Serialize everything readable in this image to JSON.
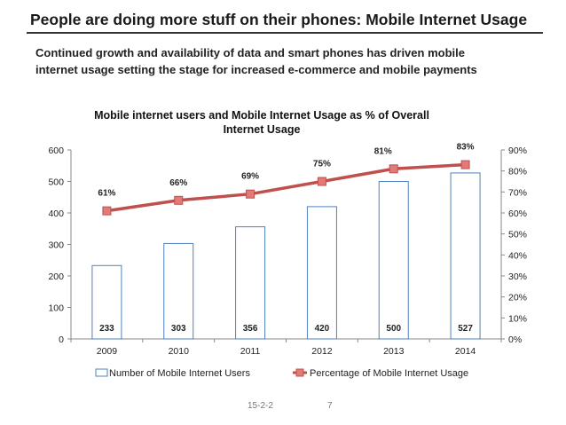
{
  "slide": {
    "title": "People are doing more stuff on their phones: Mobile Internet Usage",
    "subtitle_line1": "Continued growth and availability of data and smart phones has driven mobile",
    "subtitle_line2": "internet usage setting the stage for increased e-commerce and mobile payments",
    "footer_date": "15-2-2",
    "page_number": "7"
  },
  "colors": {
    "bar_fill": "#ffffff",
    "bar_stroke": "#4f81bd",
    "line": "#c0504d",
    "marker_fill": "#e07b78",
    "axis": "#888888"
  },
  "chart_data": {
    "type": "bar+line",
    "title_line1": "Mobile internet users and Mobile Internet Usage as % of Overall",
    "title_line2": "Internet Usage",
    "categories": [
      "2009",
      "2010",
      "2011",
      "2012",
      "2013",
      "2014"
    ],
    "series": [
      {
        "name": "Number of Mobile Internet Users",
        "kind": "bar",
        "axis": "left",
        "values": [
          233,
          303,
          356,
          420,
          500,
          527
        ],
        "labels": [
          "233",
          "303",
          "356",
          "420",
          "500",
          "527"
        ]
      },
      {
        "name": "Percentage of Mobile Internet Usage",
        "kind": "line",
        "axis": "right",
        "values": [
          61,
          66,
          69,
          75,
          81,
          83
        ],
        "labels": [
          "61%",
          "66%",
          "69%",
          "75%",
          "81%",
          "83%"
        ]
      }
    ],
    "y_left": {
      "min": 0,
      "max": 600,
      "step": 100,
      "ticks": [
        "0",
        "100",
        "200",
        "300",
        "400",
        "500",
        "600"
      ]
    },
    "y_right": {
      "min": 0,
      "max": 90,
      "step": 10,
      "ticks": [
        "0%",
        "10%",
        "20%",
        "30%",
        "40%",
        "50%",
        "60%",
        "70%",
        "80%",
        "90%"
      ]
    },
    "legend_position": "bottom",
    "grid": false
  }
}
